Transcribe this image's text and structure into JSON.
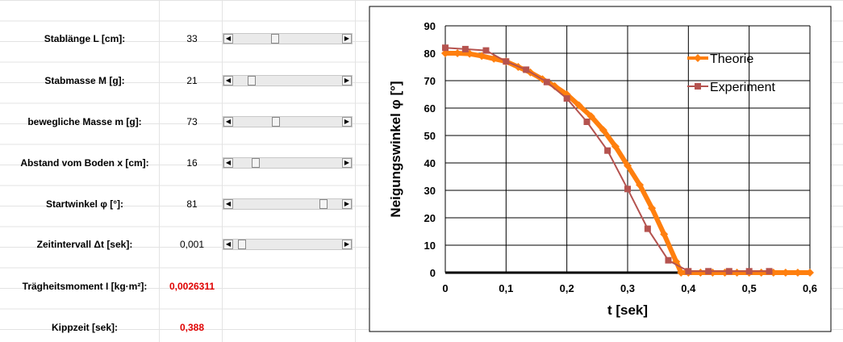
{
  "controls": [
    {
      "label": "Stablänge L [cm]:",
      "value": "33"
    },
    {
      "label": "Stabmasse M [g]:",
      "value": "21"
    },
    {
      "label": "bewegliche Masse m [g]:",
      "value": "73"
    },
    {
      "label": "Abstand vom Boden x [cm]:",
      "value": "16"
    },
    {
      "label": "Startwinkel φ [°]:",
      "value": "81"
    },
    {
      "label": "Zeitintervall Δt [sek]:",
      "value": "0,001"
    }
  ],
  "results": [
    {
      "label": "Trägheitsmoment I [kg·m²]:",
      "value": "0,0026311"
    },
    {
      "label": "Kippzeit [sek]:",
      "value": "0,388"
    }
  ],
  "chart_data": {
    "type": "line",
    "xlabel": "t [sek]",
    "ylabel": "Neigungswinkel φ [°]",
    "xlim": [
      0,
      0.6
    ],
    "xticks": [
      0,
      {
        "value": 0.1,
        "label": "0,1"
      },
      {
        "value": 0.2,
        "label": "0,2"
      },
      {
        "value": 0.3,
        "label": "0,3"
      },
      {
        "value": 0.4,
        "label": "0,4"
      },
      {
        "value": 0.5,
        "label": "0,5"
      },
      {
        "value": 0.6,
        "label": "0,6"
      }
    ],
    "ylim": [
      0,
      90
    ],
    "yticks": [
      0,
      10,
      20,
      30,
      40,
      50,
      60,
      70,
      80,
      90
    ],
    "grid": true,
    "legend": "upper right",
    "series": [
      {
        "name": "Theorie",
        "color": "#ff7f0e",
        "marker": "diamond",
        "x": [
          0,
          0.02,
          0.04,
          0.06,
          0.08,
          0.1,
          0.12,
          0.14,
          0.16,
          0.18,
          0.2,
          0.22,
          0.24,
          0.26,
          0.28,
          0.3,
          0.32,
          0.34,
          0.36,
          0.38,
          0.388,
          0.4,
          0.42,
          0.44,
          0.46,
          0.48,
          0.5,
          0.52,
          0.54,
          0.56,
          0.58,
          0.6
        ],
        "values": [
          80,
          80,
          79.8,
          79,
          78,
          77,
          75,
          73,
          70.5,
          68,
          65,
          61,
          57,
          52,
          46,
          39,
          32,
          23.5,
          14,
          4,
          0,
          0,
          0,
          0,
          0,
          0,
          0,
          0,
          0,
          0,
          0,
          0
        ]
      },
      {
        "name": "Experiment",
        "color": "#b5534f",
        "marker": "square",
        "x": [
          0,
          0.033,
          0.067,
          0.1,
          0.133,
          0.167,
          0.2,
          0.233,
          0.267,
          0.3,
          0.333,
          0.367,
          0.4,
          0.433,
          0.467,
          0.5,
          0.533
        ],
        "values": [
          82,
          81.5,
          81,
          77,
          74,
          69.5,
          63.5,
          55,
          44.5,
          30.5,
          16,
          4.5,
          0.5,
          0.5,
          0.5,
          0.5,
          0.5
        ]
      }
    ]
  }
}
